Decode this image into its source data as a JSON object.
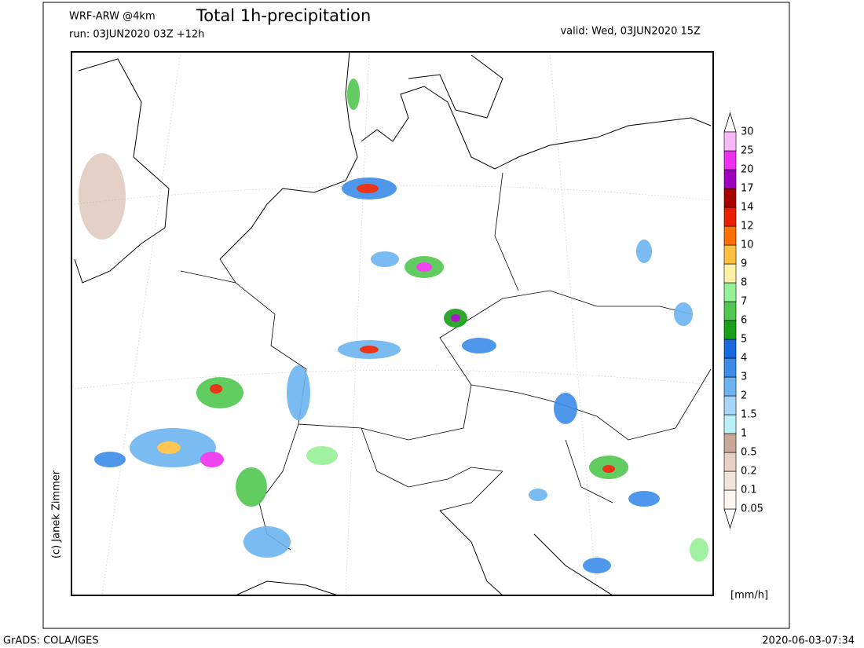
{
  "header": {
    "model": "WRF-ARW @4km",
    "title": "Total 1h-precipitation",
    "run": "run: 03JUN2020 03Z +12h",
    "valid": "valid: Wed, 03JUN2020 15Z"
  },
  "copyright": "(c) Janek Zimmer",
  "legend": {
    "unit": "[mm/h]",
    "levels": [
      0.05,
      0.1,
      0.2,
      0.5,
      1,
      1.5,
      2,
      3,
      4,
      5,
      6,
      7,
      8,
      9,
      10,
      12,
      14,
      17,
      20,
      25,
      30
    ],
    "colors": [
      "#fdf6ef",
      "#f3e4da",
      "#e8d0c4",
      "#c9a898",
      "#b8f0f8",
      "#a8d4f8",
      "#6cb4f0",
      "#3c8ce8",
      "#1868e0",
      "#18a018",
      "#50c850",
      "#96f096",
      "#fff0a8",
      "#ffc040",
      "#ff7000",
      "#e82000",
      "#a80000",
      "#a000c0",
      "#f030f0",
      "#f8b8f8"
    ]
  },
  "footer": {
    "software": "GrADS: COLA/IGES",
    "timestamp": "2020-06-03-07:34"
  }
}
